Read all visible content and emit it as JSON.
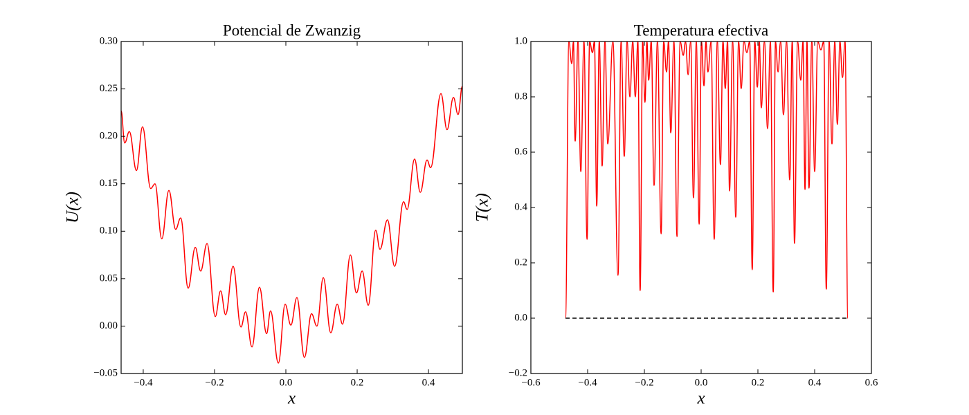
{
  "chart_data": [
    {
      "type": "line",
      "title": "Potencial de Zwanzig",
      "xlabel": "x",
      "ylabel": "U(x)",
      "xlim": [
        -0.462,
        0.495
      ],
      "ylim": [
        -0.05,
        0.3
      ],
      "xticks": [
        {
          "value": -0.4,
          "label": "−0.4"
        },
        {
          "value": -0.2,
          "label": "−0.2"
        },
        {
          "value": 0,
          "label": "0.0"
        },
        0.2,
        0.4
      ],
      "yticks": [
        {
          "value": -0.05,
          "label": "−0.05"
        },
        {
          "value": 0,
          "label": "0.00"
        },
        0.05,
        {
          "value": 0.1,
          "label": "0.10"
        },
        0.15,
        {
          "value": 0.2,
          "label": "0.20"
        },
        0.25,
        {
          "value": 0.3,
          "label": "0.30"
        }
      ],
      "series": [
        {
          "color": "#ff0000",
          "x": [
            -0.462,
            -0.452,
            -0.439,
            -0.419,
            -0.402,
            -0.379,
            -0.367,
            -0.348,
            -0.328,
            -0.309,
            -0.295,
            -0.274,
            -0.254,
            -0.239,
            -0.221,
            -0.198,
            -0.183,
            -0.169,
            -0.148,
            -0.126,
            -0.113,
            -0.095,
            -0.074,
            -0.054,
            -0.043,
            -0.021,
            -0.002,
            0.014,
            0.031,
            0.052,
            0.072,
            0.087,
            0.105,
            0.126,
            0.144,
            0.159,
            0.181,
            0.198,
            0.214,
            0.231,
            0.252,
            0.264,
            0.285,
            0.305,
            0.33,
            0.34,
            0.361,
            0.377,
            0.396,
            0.406,
            0.435,
            0.452,
            0.47,
            0.483,
            0.495
          ],
          "values": [
            0.227,
            0.193,
            0.205,
            0.164,
            0.21,
            0.145,
            0.15,
            0.092,
            0.143,
            0.102,
            0.114,
            0.04,
            0.083,
            0.058,
            0.087,
            0.01,
            0.037,
            0.012,
            0.063,
            -0.001,
            0.015,
            -0.022,
            0.041,
            -0.008,
            0.016,
            -0.039,
            0.023,
            0.001,
            0.03,
            -0.033,
            0.013,
            0,
            0.051,
            -0.007,
            0.023,
            0.002,
            0.075,
            0.035,
            0.058,
            0.022,
            0.101,
            0.081,
            0.112,
            0.063,
            0.131,
            0.123,
            0.176,
            0.141,
            0.175,
            0.167,
            0.245,
            0.207,
            0.241,
            0.223,
            0.253
          ]
        }
      ]
    },
    {
      "type": "line",
      "title": "Temperatura efectiva",
      "xlabel": "x",
      "ylabel": "T(x)",
      "xlim": [
        -0.6,
        0.6
      ],
      "ylim": [
        -0.2,
        1.0
      ],
      "xticks": [
        {
          "value": -0.6,
          "label": "−0.6"
        },
        {
          "value": -0.4,
          "label": "−0.4"
        },
        {
          "value": -0.2,
          "label": "−0.2"
        },
        {
          "value": 0,
          "label": "0.0"
        },
        0.2,
        0.4,
        0.6
      ],
      "yticks": [
        {
          "value": -0.2,
          "label": "−0.2"
        },
        {
          "value": 0,
          "label": "0.0"
        },
        0.2,
        0.4,
        0.6,
        0.8,
        {
          "value": 1,
          "label": "1.0"
        }
      ],
      "series": [
        {
          "color": "#ff0000",
          "x": [
            -0.478,
            -0.466,
            -0.456,
            -0.45,
            -0.444,
            -0.434,
            -0.424,
            -0.413,
            -0.402,
            -0.393,
            -0.383,
            -0.376,
            -0.368,
            -0.359,
            -0.349,
            -0.339,
            -0.329,
            -0.311,
            -0.293,
            -0.282,
            -0.271,
            -0.261,
            -0.251,
            -0.241,
            -0.232,
            -0.223,
            -0.215,
            -0.206,
            -0.198,
            -0.191,
            -0.185,
            -0.176,
            -0.166,
            -0.154,
            -0.141,
            -0.132,
            -0.122,
            -0.115,
            -0.107,
            -0.096,
            -0.085,
            -0.074,
            -0.063,
            -0.055,
            -0.046,
            -0.037,
            -0.027,
            -0.017,
            -0.007,
            0.001,
            0.01,
            0.017,
            0.024,
            0.035,
            0.046,
            0.057,
            0.068,
            0.077,
            0.085,
            0.093,
            0.1,
            0.111,
            0.122,
            0.132,
            0.141,
            0.151,
            0.161,
            0.171,
            0.18,
            0.189,
            0.198,
            0.205,
            0.212,
            0.223,
            0.234,
            0.244,
            0.254,
            0.262,
            0.271,
            0.28,
            0.29,
            0.301,
            0.312,
            0.321,
            0.329,
            0.34,
            0.351,
            0.359,
            0.366,
            0.373,
            0.38,
            0.39,
            0.4,
            0.411,
            0.422,
            0.432,
            0.441,
            0.451,
            0.461,
            0.471,
            0.48,
            0.489,
            0.498,
            0.507,
            0.517
          ],
          "values": [
            0,
            1,
            0.92,
            1,
            0.64,
            1,
            0.53,
            1,
            0.285,
            1,
            0.96,
            1,
            0.405,
            1,
            0.55,
            1,
            0.63,
            1,
            0.155,
            1,
            0.585,
            1,
            0.8,
            1,
            0.8,
            1,
            0.1,
            1,
            0.78,
            1,
            0.86,
            1,
            0.48,
            1,
            0.305,
            1,
            0.89,
            1,
            0.67,
            1,
            0.295,
            1,
            0.95,
            1,
            0.88,
            1,
            0.435,
            1,
            0.34,
            1,
            0.84,
            1,
            0.89,
            1,
            0.285,
            1,
            0.555,
            1,
            0.83,
            1,
            0.46,
            1,
            0.365,
            1,
            0.83,
            1,
            0.96,
            1,
            0.175,
            1,
            0.835,
            1,
            0.76,
            1,
            0.685,
            1,
            0.095,
            1,
            0.89,
            1,
            0.735,
            1,
            0.5,
            1,
            0.27,
            1,
            0.86,
            1,
            0.465,
            1,
            0.47,
            1,
            0.53,
            1,
            0.97,
            1,
            0.105,
            1,
            0.63,
            1,
            0.7,
            1,
            0.87,
            1,
            0
          ]
        },
        {
          "color": "#000000",
          "linestyle": "dashed",
          "x": [
            -0.478,
            0.517
          ],
          "values": [
            0,
            0
          ]
        }
      ]
    }
  ]
}
